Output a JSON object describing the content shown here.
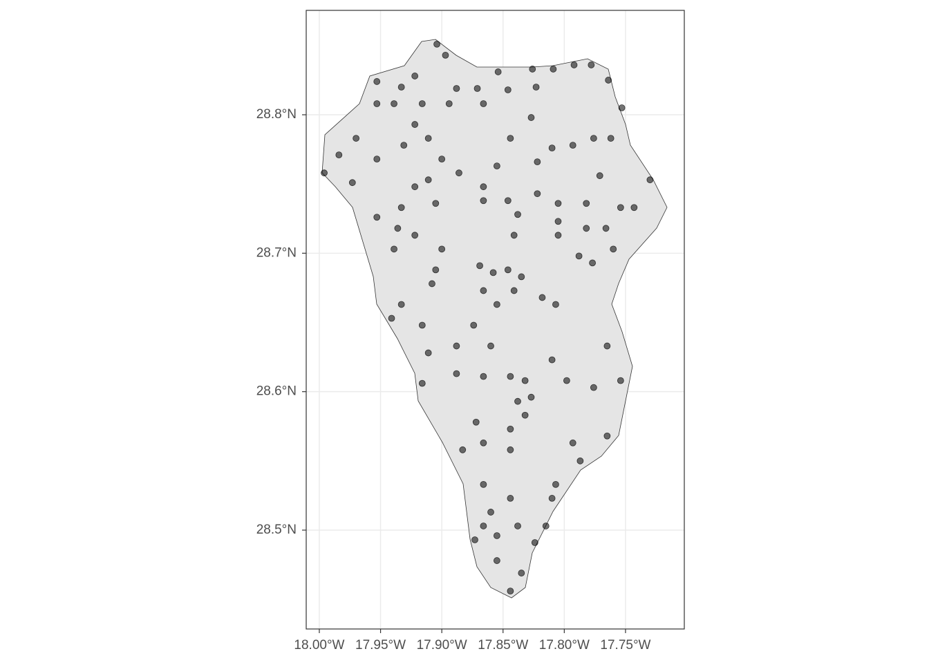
{
  "chart_data": {
    "type": "scatter",
    "color": "#000000",
    "grid": true,
    "xlim": [
      -18.0107,
      -17.702
    ],
    "ylim": [
      28.4286,
      28.8754
    ],
    "xticks": [
      {
        "value": -18.0,
        "label": "18.00°W"
      },
      {
        "value": -17.95,
        "label": "17.95°W"
      },
      {
        "value": -17.9,
        "label": "17.90°W"
      },
      {
        "value": -17.85,
        "label": "17.85°W"
      },
      {
        "value": -17.8,
        "label": "17.80°W"
      },
      {
        "value": -17.75,
        "label": "17.75°W"
      }
    ],
    "yticks": [
      {
        "value": 28.5,
        "label": "28.5°N"
      },
      {
        "value": 28.6,
        "label": "28.6°N"
      },
      {
        "value": 28.7,
        "label": "28.7°N"
      },
      {
        "value": 28.8,
        "label": "28.8°N"
      }
    ],
    "x": [
      -17.904,
      -17.897,
      -17.922,
      -17.953,
      -17.933,
      -17.888,
      -17.871,
      -17.854,
      -17.826,
      -17.809,
      -17.792,
      -17.778,
      -17.764,
      -17.753,
      -17.823,
      -17.846,
      -17.866,
      -17.894,
      -17.916,
      -17.939,
      -17.953,
      -17.97,
      -17.984,
      -17.996,
      -17.973,
      -17.953,
      -17.931,
      -17.911,
      -17.9,
      -17.886,
      -17.866,
      -17.866,
      -17.855,
      -17.844,
      -17.827,
      -17.81,
      -17.793,
      -17.776,
      -17.762,
      -17.822,
      -17.771,
      -17.73,
      -17.822,
      -17.805,
      -17.782,
      -17.754,
      -17.743,
      -17.805,
      -17.782,
      -17.766,
      -17.76,
      -17.805,
      -17.788,
      -17.777,
      -17.922,
      -17.905,
      -17.933,
      -17.953,
      -17.936,
      -17.922,
      -17.939,
      -17.9,
      -17.905,
      -17.908,
      -17.869,
      -17.858,
      -17.846,
      -17.835,
      -17.841,
      -17.838,
      -17.846,
      -17.841,
      -17.818,
      -17.807,
      -17.866,
      -17.855,
      -17.933,
      -17.941,
      -17.916,
      -17.911,
      -17.874,
      -17.86,
      -17.888,
      -17.916,
      -17.888,
      -17.866,
      -17.844,
      -17.832,
      -17.838,
      -17.827,
      -17.81,
      -17.798,
      -17.776,
      -17.765,
      -17.754,
      -17.872,
      -17.883,
      -17.866,
      -17.844,
      -17.832,
      -17.844,
      -17.793,
      -17.765,
      -17.787,
      -17.866,
      -17.86,
      -17.866,
      -17.855,
      -17.844,
      -17.838,
      -17.81,
      -17.815,
      -17.824,
      -17.807,
      -17.855,
      -17.844,
      -17.835,
      -17.873,
      -17.922,
      -17.911
    ],
    "y": [
      28.851,
      28.843,
      28.828,
      28.824,
      28.82,
      28.819,
      28.819,
      28.831,
      28.833,
      28.833,
      28.836,
      28.836,
      28.825,
      28.805,
      28.82,
      28.818,
      28.808,
      28.808,
      28.808,
      28.808,
      28.808,
      28.783,
      28.771,
      28.758,
      28.751,
      28.768,
      28.778,
      28.783,
      28.768,
      28.758,
      28.748,
      28.738,
      28.763,
      28.783,
      28.798,
      28.776,
      28.778,
      28.783,
      28.783,
      28.766,
      28.756,
      28.753,
      28.743,
      28.736,
      28.736,
      28.733,
      28.733,
      28.723,
      28.718,
      28.718,
      28.703,
      28.713,
      28.698,
      28.693,
      28.748,
      28.736,
      28.733,
      28.726,
      28.718,
      28.713,
      28.703,
      28.703,
      28.688,
      28.678,
      28.691,
      28.686,
      28.688,
      28.683,
      28.713,
      28.728,
      28.738,
      28.673,
      28.668,
      28.663,
      28.673,
      28.663,
      28.663,
      28.653,
      28.648,
      28.628,
      28.648,
      28.633,
      28.633,
      28.606,
      28.613,
      28.611,
      28.611,
      28.608,
      28.593,
      28.596,
      28.623,
      28.608,
      28.603,
      28.633,
      28.608,
      28.578,
      28.558,
      28.563,
      28.573,
      28.583,
      28.558,
      28.563,
      28.568,
      28.55,
      28.533,
      28.513,
      28.503,
      28.496,
      28.523,
      28.503,
      28.523,
      28.503,
      28.491,
      28.533,
      28.478,
      28.456,
      28.469,
      28.493,
      28.793,
      28.753
    ]
  }
}
